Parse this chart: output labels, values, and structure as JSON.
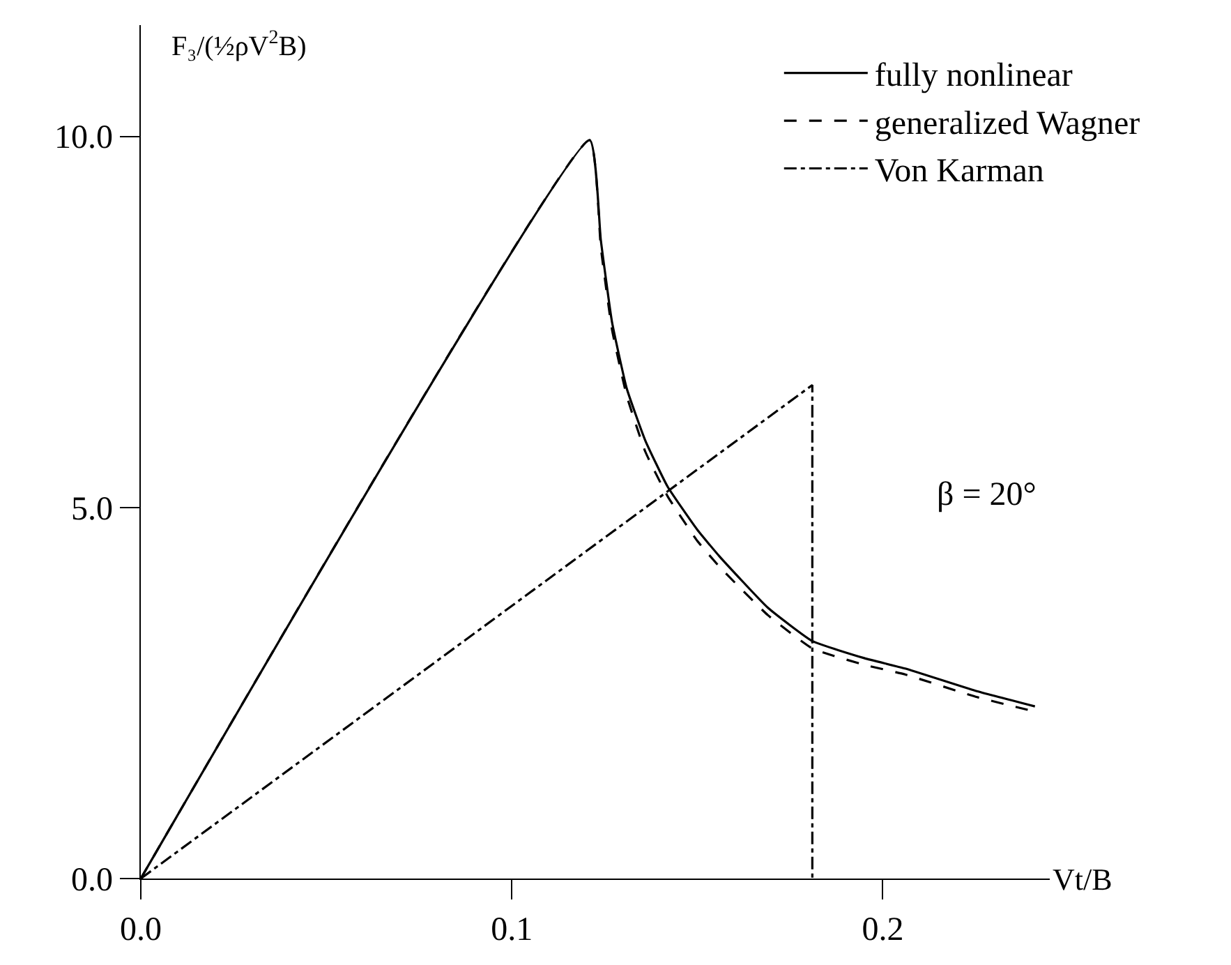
{
  "chart_data": {
    "type": "line",
    "xlabel": "Vt/B",
    "ylabel": "F₃/(½ρV$^{2}$B)",
    "xlim": [
      0,
      0.245
    ],
    "ylim": [
      0,
      11.5
    ],
    "xticks": [
      {
        "value": 0,
        "label": "0.0"
      },
      0.1,
      0.2
    ],
    "yticks": [
      {
        "value": 0,
        "label": "0.0"
      },
      {
        "value": 5,
        "label": "5.0"
      },
      {
        "value": 10,
        "label": "10.0"
      }
    ],
    "legend": "top right",
    "marker": "none",
    "annotations": [
      "β = 20°"
    ],
    "series": [
      {
        "name": "fully nonlinear",
        "color": "#000000",
        "line_style": "solid",
        "x": [
          0,
          0.121,
          0.124,
          0.127,
          0.131,
          0.136,
          0.142,
          0.15,
          0.156,
          0.169,
          0.181,
          0.195,
          0.206,
          0.225,
          0.241
        ],
        "values": [
          0,
          9.95,
          8.6,
          7.5,
          6.6,
          5.9,
          5.28,
          4.7,
          4.34,
          3.65,
          3.2,
          2.97,
          2.83,
          2.53,
          2.32
        ]
      },
      {
        "name": "generalized Wagner",
        "color": "#000000",
        "line_style": "dashed",
        "x": [
          0,
          0.121,
          0.124,
          0.127,
          0.131,
          0.136,
          0.142,
          0.15,
          0.156,
          0.169,
          0.181,
          0.195,
          0.206,
          0.225,
          0.241
        ],
        "values": [
          0,
          9.95,
          8.5,
          7.4,
          6.5,
          5.75,
          5.15,
          4.55,
          4.2,
          3.55,
          3.1,
          2.88,
          2.75,
          2.45,
          2.25
        ]
      },
      {
        "name": "Von Karman",
        "color": "#000000",
        "line_style": "dashdot",
        "x": [
          0,
          0.181,
          0.181
        ],
        "values": [
          0,
          6.65,
          0
        ]
      }
    ]
  }
}
